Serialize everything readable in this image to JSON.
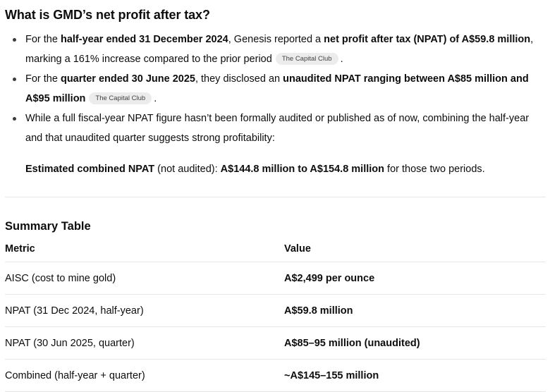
{
  "heading": "What is GMD’s net profit after tax?",
  "citation": {
    "label": "The Capital Club"
  },
  "bullet1": {
    "t1": "For the ",
    "b1": "half-year ended 31 December 2024",
    "t2": ", Genesis reported a ",
    "b2": "net profit after tax (NPAT) of A$59.8 million",
    "t3": ", marking a 161% increase compared to the prior period",
    "t4": "."
  },
  "bullet2": {
    "t1": "For the ",
    "b1": "quarter ended 30 June 2025",
    "t2": ", they disclosed an ",
    "b2": "unaudited NPAT ranging between A$85 million and A$95 million",
    "t3": "."
  },
  "bullet3": {
    "t1": "While a full fiscal-year NPAT figure hasn’t been formally audited or published as of now, combining the half-year and that unaudited quarter suggests strong profitability:",
    "p": {
      "b1": "Estimated combined NPAT",
      "t1": " (not audited): ",
      "b2": "A$144.8 million to A$154.8 million",
      "t2": " for those two periods."
    }
  },
  "summary": {
    "heading": "Summary Table",
    "columns": [
      "Metric",
      "Value"
    ],
    "rows": [
      {
        "metric": "AISC (cost to mine gold)",
        "value": "A$2,499 per ounce"
      },
      {
        "metric": "NPAT (31 Dec 2024, half-year)",
        "value": "A$59.8 million"
      },
      {
        "metric": "NPAT (30 Jun 2025, quarter)",
        "value": "A$85–95 million (unaudited)"
      },
      {
        "metric": "Combined (half-year + quarter)",
        "value": "~A$145–155 million"
      }
    ]
  },
  "colors": {
    "text": "#0d0d0d",
    "divider": "#e6e6e6",
    "badge_background": "#ececec",
    "badge_text": "#424242"
  }
}
